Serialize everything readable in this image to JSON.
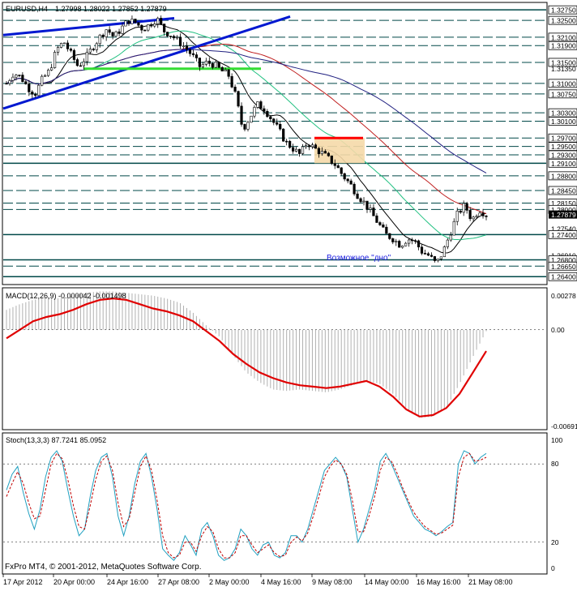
{
  "header": {
    "symbol": "EURUSD,H4",
    "ohlc": "1.27998 1.28022 1.27852 1.27879",
    "annotation": "Возможное \"дно\"",
    "copyright": "FxPro MT4, © 2001-2012, MetaQuotes Software Corp."
  },
  "price_axis": {
    "labels": [
      "1.32750",
      "1.32500",
      "1.32100",
      "1.31900",
      "1.31500",
      "1.31350",
      "1.31000",
      "1.30750",
      "1.30300",
      "1.30100",
      "1.29700",
      "1.29500",
      "1.29300",
      "1.29100",
      "1.28800",
      "1.28450",
      "1.28150",
      "1.28000",
      "1.27879",
      "1.27540",
      "1.27400",
      "1.26910",
      "1.26800",
      "1.26650",
      "1.26400"
    ],
    "boxed": [
      "1.32750",
      "1.32500",
      "1.32100",
      "1.31900",
      "1.31500",
      "1.31000",
      "1.30750",
      "1.30300",
      "1.30100",
      "1.29700",
      "1.29500",
      "1.29300",
      "1.29100",
      "1.28800",
      "1.28450",
      "1.28150",
      "1.28000",
      "1.27400",
      "1.26800",
      "1.26650",
      "1.26400"
    ],
    "current": "1.27879"
  },
  "time_axis": {
    "labels": [
      "17 Apr 2012",
      "20 Apr 00:00",
      "24 Apr 16:00",
      "27 Apr 08:00",
      "2 May 00:00",
      "4 May 16:00",
      "9 May 08:00",
      "14 May 00:00",
      "16 May 16:00",
      "21 May 08:00"
    ]
  },
  "macd": {
    "title": "MACD(12,26,9) -0.000042 -0.001498",
    "axis_labels": [
      "0.00278",
      "0.00",
      "-0.00691"
    ]
  },
  "stoch": {
    "title": "Stoch(13,3,3) 87.7241 85.0952",
    "axis_labels": [
      "100",
      "80",
      "20",
      "0"
    ]
  },
  "colors": {
    "trendline": "#0018d0",
    "support": "#33dd33",
    "resistance_box": "#f5d9a8",
    "resistance_top": "#ff0000",
    "ma_green": "#20c080",
    "ma_red": "#c02020",
    "ma_blue": "#202080",
    "macd_signal": "#e00000",
    "stoch_main": "#20a0c0",
    "stoch_signal": "#c00000",
    "hline": "#004848"
  },
  "chart_data": [
    {
      "type": "candlestick",
      "title": "EURUSD,H4",
      "ylim": [
        1.2625,
        1.3285
      ],
      "x": [
        "17 Apr 2012",
        "20 Apr 00:00",
        "24 Apr 16:00",
        "27 Apr 08:00",
        "2 May 00:00",
        "4 May 16:00",
        "9 May 08:00",
        "14 May 00:00",
        "16 May 16:00",
        "21 May 08:00"
      ],
      "close_path": [
        1.31,
        1.3125,
        1.3115,
        1.309,
        1.3075,
        1.311,
        1.313,
        1.318,
        1.32,
        1.317,
        1.314,
        1.316,
        1.3185,
        1.321,
        1.323,
        1.321,
        1.323,
        1.325,
        1.3245,
        1.323,
        1.324,
        1.3255,
        1.3225,
        1.3215,
        1.32,
        1.3185,
        1.3165,
        1.314,
        1.315,
        1.3145,
        1.313,
        1.312,
        1.307,
        1.299,
        1.302,
        1.305,
        1.304,
        1.3015,
        1.299,
        1.296,
        1.2945,
        1.293,
        1.296,
        1.2945,
        1.2935,
        1.292,
        1.2905,
        1.288,
        1.286,
        1.2835,
        1.2815,
        1.279,
        1.2765,
        1.274,
        1.273,
        1.2715,
        1.273,
        1.2725,
        1.27,
        1.269,
        1.267,
        1.27,
        1.2745,
        1.279,
        1.281,
        1.2775,
        1.28,
        1.2788
      ],
      "annotation": "Возможное \"дно\""
    },
    {
      "type": "line",
      "title": "MACD(12,26,9) -0.000042 -0.001498",
      "ylim": [
        -0.00691,
        0.00278
      ],
      "series": [
        {
          "name": "MACD",
          "values": [
            0.0014,
            0.0018,
            0.0021,
            0.0023,
            0.0022,
            0.0024,
            0.0026,
            0.0027,
            0.0027,
            0.0026,
            0.0025,
            0.0024,
            0.0022,
            0.0019,
            0.0012,
            0.0003,
            -0.0005,
            -0.0018,
            -0.003,
            -0.0037,
            -0.0042,
            -0.0043,
            -0.0042,
            -0.0043,
            -0.0044,
            -0.0042,
            -0.0039,
            -0.0036,
            -0.0038,
            -0.0045,
            -0.0055,
            -0.0062,
            -0.0061,
            -0.0055,
            -0.0038,
            -0.0019,
            -0.0001
          ]
        },
        {
          "name": "Signal",
          "values": [
            -0.0006,
            0.0,
            0.0006,
            0.0009,
            0.0011,
            0.0014,
            0.0018,
            0.0021,
            0.0022,
            0.0021,
            0.0018,
            0.0015,
            0.0013,
            0.001,
            0.0006,
            -0.0001,
            -0.0008,
            -0.0017,
            -0.0024,
            -0.003,
            -0.0034,
            -0.0037,
            -0.0039,
            -0.004,
            -0.0041,
            -0.004,
            -0.0038,
            -0.0036,
            -0.004,
            -0.0047,
            -0.0056,
            -0.0061,
            -0.006,
            -0.0055,
            -0.0045,
            -0.003,
            -0.0015
          ]
        }
      ]
    },
    {
      "type": "line",
      "title": "Stoch(13,3,3) 87.7241 85.0952",
      "ylim": [
        0,
        100
      ],
      "series": [
        {
          "name": "Stoch",
          "values": [
            60,
            72,
            78,
            58,
            42,
            30,
            45,
            70,
            85,
            90,
            82,
            60,
            40,
            25,
            30,
            55,
            75,
            85,
            88,
            70,
            40,
            25,
            40,
            65,
            82,
            88,
            70,
            45,
            15,
            10,
            6,
            12,
            25,
            18,
            10,
            30,
            35,
            25,
            10,
            6,
            8,
            15,
            30,
            25,
            15,
            10,
            18,
            20,
            10,
            8,
            12,
            25,
            25,
            20,
            30,
            45,
            60,
            75,
            80,
            85,
            80,
            70,
            45,
            20,
            30,
            45,
            60,
            82,
            88,
            80,
            70,
            60,
            50,
            40,
            35,
            30,
            28,
            25,
            28,
            32,
            35,
            80,
            90,
            88,
            80,
            85,
            88
          ]
        },
        {
          "name": "Signal",
          "values": [
            55,
            65,
            74,
            65,
            50,
            38,
            40,
            60,
            80,
            88,
            84,
            68,
            48,
            32,
            30,
            48,
            68,
            82,
            86,
            75,
            50,
            32,
            38,
            58,
            78,
            86,
            75,
            52,
            25,
            12,
            8,
            10,
            20,
            20,
            13,
            25,
            32,
            28,
            15,
            8,
            8,
            12,
            25,
            25,
            18,
            12,
            15,
            18,
            12,
            9,
            10,
            20,
            24,
            21,
            27,
            40,
            55,
            70,
            78,
            83,
            80,
            72,
            52,
            28,
            28,
            40,
            55,
            75,
            85,
            82,
            73,
            62,
            52,
            43,
            37,
            32,
            29,
            26,
            27,
            30,
            33,
            70,
            85,
            88,
            82,
            83,
            85
          ]
        }
      ]
    }
  ]
}
